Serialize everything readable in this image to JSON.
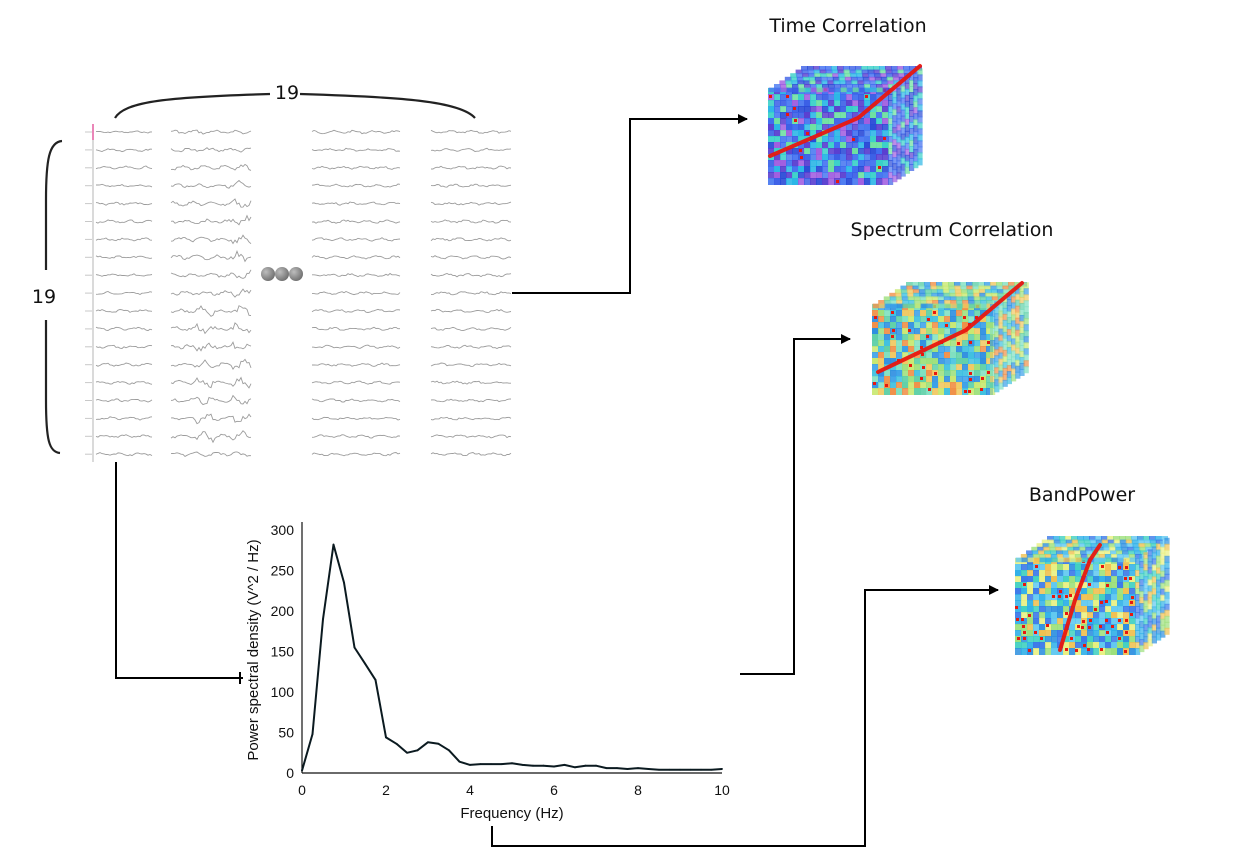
{
  "eeg": {
    "channel_count_label": "19",
    "window_count_label": "19"
  },
  "features": [
    {
      "title": "Time Correlation",
      "icon": "time-correlation-cube"
    },
    {
      "title": "Spectrum Correlation",
      "icon": "spectrum-correlation-cube"
    },
    {
      "title": "BandPower",
      "icon": "bandpower-cube"
    }
  ],
  "chart_data": {
    "type": "line",
    "title": "",
    "xlabel": "Frequency (Hz)",
    "ylabel": "Power spectral density (V^2 / Hz)",
    "xlim": [
      0,
      10
    ],
    "ylim": [
      0,
      300
    ],
    "x_ticks": [
      0,
      2,
      4,
      6,
      8,
      10
    ],
    "y_ticks": [
      0,
      50,
      100,
      150,
      200,
      250,
      300
    ],
    "grid": false,
    "line_color": "#0b1a20",
    "series": [
      {
        "x": [
          0,
          0.25,
          0.5,
          0.75,
          1.0,
          1.25,
          1.5,
          1.75,
          2.0,
          2.25,
          2.5,
          2.75,
          3.0,
          3.25,
          3.5,
          3.75,
          4.0,
          4.25,
          4.5,
          4.75,
          5.0,
          5.25,
          5.5,
          5.75,
          6.0,
          6.25,
          6.5,
          6.75,
          7.0,
          7.25,
          7.5,
          7.75,
          8.0,
          8.25,
          8.5,
          8.75,
          9.0,
          9.25,
          9.5,
          9.75,
          10.0
        ],
        "values": [
          3,
          48,
          190,
          282,
          235,
          155,
          135,
          115,
          44,
          36,
          25,
          28,
          38,
          36,
          28,
          14,
          10,
          11,
          11,
          11,
          12,
          10,
          9,
          9,
          8,
          10,
          7,
          9,
          9,
          6,
          6,
          5,
          6,
          5,
          4,
          4,
          4,
          4,
          4,
          4,
          5
        ]
      }
    ]
  },
  "colors": {
    "connector": "#000000",
    "eeg_trace": "#9c9c9c",
    "ellipsis_dots": "#8a8a8a",
    "highlight_line": "#e8170f"
  }
}
